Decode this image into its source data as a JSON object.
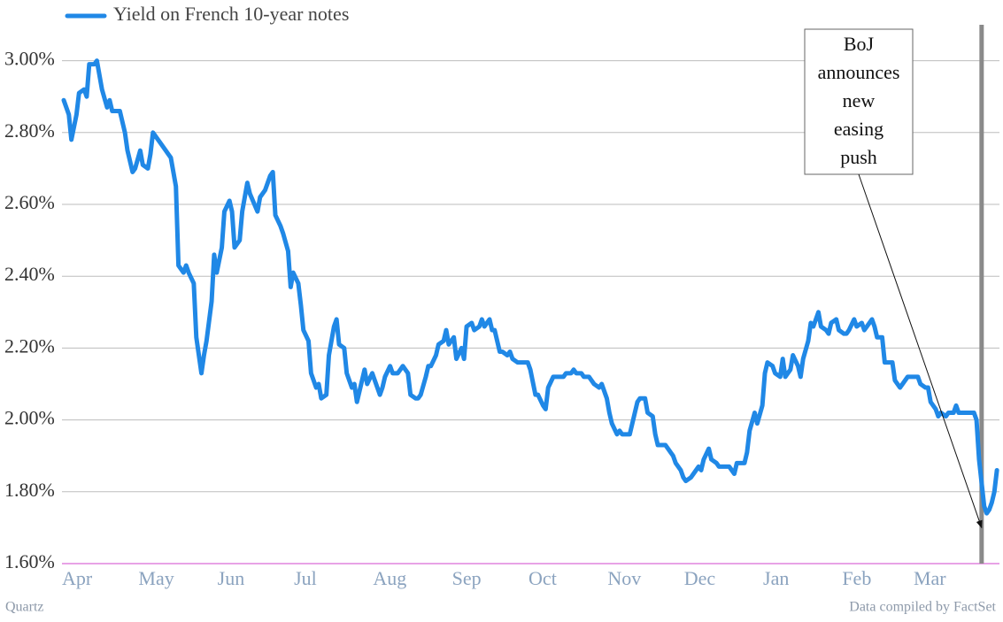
{
  "chart_data": {
    "type": "line",
    "x": [
      0,
      2,
      3,
      5,
      6,
      8,
      9,
      10,
      12,
      13,
      15,
      17,
      18,
      19,
      22,
      24,
      25,
      27,
      28,
      30,
      31,
      33,
      34,
      35,
      37,
      38,
      40,
      41,
      42,
      44,
      45,
      47,
      48,
      49,
      51,
      52,
      54,
      55,
      56,
      58,
      59,
      60,
      62,
      63,
      65,
      66,
      67,
      69,
      70,
      72,
      73,
      76,
      77,
      79,
      81,
      82,
      83,
      85,
      86,
      88,
      89,
      90,
      92,
      93,
      94,
      96,
      97,
      99,
      100,
      101,
      103,
      104,
      106,
      107,
      108,
      110,
      111,
      113,
      114,
      115,
      117,
      118,
      119,
      121,
      122,
      124,
      125,
      126,
      128,
      129,
      131,
      132,
      133,
      135,
      136,
      138,
      139,
      140,
      142,
      143,
      144,
      146,
      147,
      149,
      150,
      151,
      153,
      154,
      156,
      157,
      158,
      160,
      161,
      163,
      164,
      165,
      167,
      168,
      169,
      171,
      172,
      174,
      175,
      176,
      178,
      179,
      181,
      182,
      183,
      185,
      186,
      188,
      189,
      190,
      192,
      193,
      194,
      196,
      197,
      199,
      200,
      201,
      203,
      204,
      206,
      207,
      208,
      210,
      211,
      213,
      214,
      215,
      217,
      218,
      219,
      221,
      222,
      224,
      225,
      226,
      228,
      229,
      231,
      232,
      233,
      235,
      236,
      238,
      239,
      240,
      242,
      243,
      244,
      246,
      247,
      249,
      250,
      251,
      253,
      254,
      256,
      257,
      258,
      260,
      261,
      263,
      264,
      265,
      267,
      268,
      269,
      271,
      272,
      274,
      275,
      276,
      278,
      279,
      281,
      282,
      283,
      285,
      286,
      288,
      289,
      290,
      292,
      293,
      294,
      296,
      297,
      299,
      300,
      301,
      303,
      304,
      306,
      307,
      308,
      310,
      311,
      313,
      314,
      315,
      317,
      318,
      319,
      321,
      322,
      324,
      325,
      326,
      328,
      329,
      331,
      332,
      333,
      335,
      336,
      338,
      339,
      340,
      342,
      343,
      344,
      346,
      347,
      349,
      350,
      351,
      353,
      354,
      356,
      357,
      358,
      359,
      361,
      362,
      363,
      364,
      365,
      366
    ],
    "series": [
      {
        "name": "Yield on French 10-year notes",
        "color": "#2088e6",
        "values": [
          2.89,
          2.85,
          2.78,
          2.85,
          2.91,
          2.92,
          2.9,
          2.99,
          2.99,
          3.0,
          2.92,
          2.87,
          2.89,
          2.86,
          2.86,
          2.8,
          2.75,
          2.69,
          2.7,
          2.75,
          2.71,
          2.7,
          2.74,
          2.8,
          2.78,
          2.77,
          2.75,
          2.74,
          2.73,
          2.65,
          2.43,
          2.41,
          2.43,
          2.41,
          2.38,
          2.23,
          2.13,
          2.18,
          2.22,
          2.33,
          2.46,
          2.41,
          2.48,
          2.58,
          2.61,
          2.58,
          2.48,
          2.5,
          2.58,
          2.66,
          2.63,
          2.58,
          2.62,
          2.64,
          2.68,
          2.69,
          2.57,
          2.54,
          2.52,
          2.47,
          2.37,
          2.41,
          2.38,
          2.32,
          2.25,
          2.22,
          2.13,
          2.09,
          2.1,
          2.06,
          2.07,
          2.18,
          2.26,
          2.28,
          2.21,
          2.2,
          2.13,
          2.09,
          2.1,
          2.05,
          2.11,
          2.14,
          2.1,
          2.13,
          2.11,
          2.07,
          2.09,
          2.12,
          2.15,
          2.13,
          2.13,
          2.14,
          2.15,
          2.13,
          2.07,
          2.06,
          2.06,
          2.07,
          2.12,
          2.15,
          2.15,
          2.18,
          2.21,
          2.22,
          2.25,
          2.21,
          2.23,
          2.17,
          2.2,
          2.17,
          2.26,
          2.27,
          2.25,
          2.26,
          2.28,
          2.26,
          2.28,
          2.25,
          2.25,
          2.19,
          2.19,
          2.18,
          2.19,
          2.17,
          2.16,
          2.16,
          2.16,
          2.16,
          2.14,
          2.07,
          2.07,
          2.04,
          2.03,
          2.09,
          2.12,
          2.12,
          2.12,
          2.12,
          2.13,
          2.13,
          2.14,
          2.13,
          2.13,
          2.12,
          2.12,
          2.11,
          2.1,
          2.09,
          2.1,
          2.06,
          2.02,
          1.99,
          1.96,
          1.97,
          1.96,
          1.96,
          1.96,
          2.02,
          2.05,
          2.06,
          2.06,
          2.02,
          2.01,
          1.96,
          1.93,
          1.93,
          1.93,
          1.91,
          1.9,
          1.88,
          1.86,
          1.84,
          1.83,
          1.84,
          1.85,
          1.87,
          1.86,
          1.89,
          1.92,
          1.89,
          1.88,
          1.87,
          1.87,
          1.87,
          1.87,
          1.85,
          1.88,
          1.88,
          1.88,
          1.91,
          1.97,
          2.02,
          1.99,
          2.04,
          2.13,
          2.16,
          2.15,
          2.13,
          2.12,
          2.17,
          2.12,
          2.14,
          2.18,
          2.15,
          2.12,
          2.17,
          2.22,
          2.27,
          2.26,
          2.3,
          2.26,
          2.25,
          2.24,
          2.27,
          2.28,
          2.25,
          2.24,
          2.24,
          2.25,
          2.28,
          2.26,
          2.27,
          2.25,
          2.26,
          2.28,
          2.26,
          2.23,
          2.23,
          2.16,
          2.16,
          2.16,
          2.11,
          2.09,
          2.1,
          2.12,
          2.12,
          2.12,
          2.12,
          2.1,
          2.09,
          2.09,
          2.05,
          2.03,
          2.01,
          2.02,
          2.01,
          2.02,
          2.02,
          2.04,
          2.02,
          2.02,
          2.02,
          2.02,
          2.02,
          2.0,
          1.89,
          1.76,
          1.74,
          1.75,
          1.77,
          1.8,
          1.86
        ]
      }
    ],
    "xlim": [
      0,
      367
    ],
    "xticks": [
      {
        "value": 0,
        "label": "Apr"
      },
      {
        "value": 30,
        "label": "May"
      },
      {
        "value": 61,
        "label": "Jun"
      },
      {
        "value": 91,
        "label": "Jul"
      },
      {
        "value": 122,
        "label": "Aug"
      },
      {
        "value": 153,
        "label": "Sep"
      },
      {
        "value": 183,
        "label": "Oct"
      },
      {
        "value": 214,
        "label": "Nov"
      },
      {
        "value": 244,
        "label": "Dec"
      },
      {
        "value": 275,
        "label": "Jan"
      },
      {
        "value": 306,
        "label": "Feb"
      },
      {
        "value": 334,
        "label": "Mar"
      }
    ],
    "ylim": [
      1.6,
      3.1
    ],
    "yticks": [
      {
        "value": 1.6,
        "label": "1.60%"
      },
      {
        "value": 1.8,
        "label": "1.80%"
      },
      {
        "value": 2.0,
        "label": "2.00%"
      },
      {
        "value": 2.2,
        "label": "2.20%"
      },
      {
        "value": 2.4,
        "label": "2.40%"
      },
      {
        "value": 2.6,
        "label": "2.60%"
      },
      {
        "value": 2.8,
        "label": "2.80%"
      },
      {
        "value": 3.0,
        "label": "3.00%"
      }
    ],
    "grid": true,
    "annotation": {
      "text": [
        "BoJ",
        "announces",
        "new",
        "easing",
        "push"
      ],
      "x": 360,
      "y": 1.7
    },
    "credit": "Quartz",
    "source": "Data compiled by FactSet"
  }
}
